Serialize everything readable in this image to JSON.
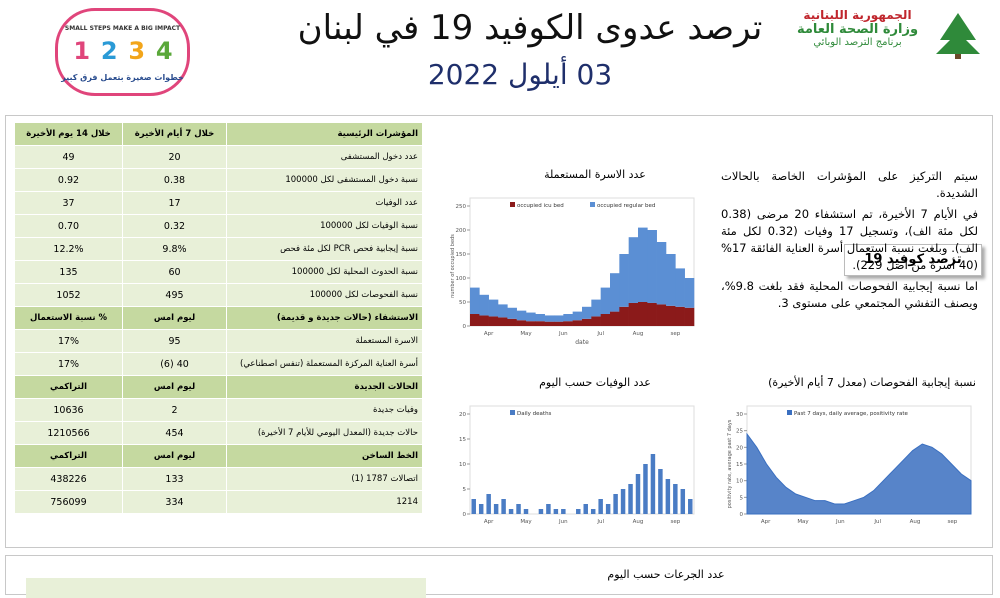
{
  "header": {
    "title": "ترصد عدوى الكوفيد 19 في لبنان",
    "date": "03 أيلول 2022",
    "ministry": [
      "الجمهورية اللبنانية",
      "وزارة الصحة العامة",
      "برنامج الترصد الوبائي"
    ],
    "campaign": {
      "slogan_en": "SMALL STEPS MAKE A BIG IMPACT",
      "steps": [
        "1",
        "2",
        "3",
        "4"
      ],
      "slogan_ar": "خطوات صغيرة بتعمل فرق كبير"
    }
  },
  "table": {
    "sections": [
      {
        "header": [
          "المؤشرات الرئيسية",
          "خلال 7 أيام الأخيرة",
          "خلال 14 يوم الأخيرة"
        ],
        "rows": [
          [
            "عدد دخول المستشفى",
            "20",
            "49"
          ],
          [
            "نسبة دخول المستشفى لكل 100000",
            "0.38",
            "0.92"
          ],
          [
            "عدد الوفيات",
            "17",
            "37"
          ],
          [
            "نسبة الوفيات لكل 100000",
            "0.32",
            "0.70"
          ],
          [
            "نسبة إيجابية فحص PCR لكل مئة فحص",
            "9.8%",
            "12.2%"
          ],
          [
            "نسبة الحدوث المحلية لكل 100000",
            "60",
            "135"
          ],
          [
            "نسبة الفحوصات لكل 100000",
            "495",
            "1052"
          ]
        ]
      },
      {
        "header": [
          "الاستشفاء (حالات جديدة و قديمة)",
          "ليوم امس",
          "% نسبة الاستعمال"
        ],
        "rows": [
          [
            "الاسرة المستعملة",
            "95",
            "17%"
          ],
          [
            "أسرة العناية المركزة المستعملة (تنفس اصطناعي)",
            "40 (6)",
            "17%"
          ]
        ]
      },
      {
        "header": [
          "الحالات الجديدة",
          "ليوم امس",
          "التراكمي"
        ],
        "rows": [
          [
            "وفيات جديدة",
            "2",
            "10636"
          ],
          [
            "حالات جديدة (المعدل اليومي للأيام 7 الأخيرة)",
            "454",
            "1210566"
          ]
        ]
      },
      {
        "header": [
          "الخط الساخن",
          "ليوم امس",
          "التراكمي"
        ],
        "rows": [
          [
            "اتصالات 1787 (1)",
            "133",
            "438226"
          ],
          [
            "1214",
            "334",
            "756099"
          ]
        ]
      }
    ]
  },
  "summary": {
    "title": "ترصد كوفيد 19",
    "paragraphs": [
      "سيتم التركيز على المؤشرات الخاصة بالحالات الشديدة.",
      "في الأيام 7 الأخيرة، تم استشفاء 20 مرضى (0.38 لكل مئة الف)، وتسجيل 17 وفيات (0.32 لكل مئة الف). وبلغت نسبة استعمال أسرة العناية الفائقة 17% (40 أسرة من أصل 229).",
      "اما نسبة إيجابية الفحوصات المحلية فقد بلغت 9.8%، ويصنف التفشي المجتمعي على مستوى 3."
    ]
  },
  "charts": [
    {
      "type": "stacked_bar",
      "title": "عدد الاسرة المستعملة",
      "x_title": "date",
      "y_title": "number of occupied beds",
      "x_labels": [
        "Apr",
        "May",
        "Jun",
        "Jul",
        "Aug",
        "sep"
      ],
      "ylim": [
        0,
        250
      ],
      "yticks": [
        0,
        50,
        100,
        150,
        200,
        250
      ],
      "series": [
        {
          "name": "occupied icu bed",
          "color": "#8b1a1a",
          "values": [
            25,
            22,
            20,
            18,
            15,
            12,
            10,
            10,
            9,
            9,
            10,
            12,
            15,
            20,
            25,
            30,
            40,
            48,
            50,
            48,
            45,
            42,
            40,
            38
          ]
        },
        {
          "name": "occupied regular bed",
          "color": "#5b8fd4",
          "values": [
            55,
            43,
            35,
            27,
            23,
            20,
            18,
            15,
            13,
            13,
            15,
            18,
            25,
            35,
            55,
            80,
            110,
            137,
            155,
            152,
            130,
            108,
            80,
            62
          ]
        }
      ]
    },
    {
      "type": "bar",
      "title": "عدد الوفيات حسب اليوم",
      "x_labels": [
        "Apr",
        "May",
        "Jun",
        "Jul",
        "Aug",
        "sep"
      ],
      "ylim": [
        0,
        20
      ],
      "yticks": [
        0,
        5,
        10,
        15,
        20
      ],
      "series": [
        {
          "name": "Daily deaths",
          "color": "#4a7cc4",
          "values": [
            3,
            2,
            4,
            2,
            3,
            1,
            2,
            1,
            0,
            1,
            2,
            1,
            1,
            0,
            1,
            2,
            1,
            3,
            2,
            4,
            5,
            6,
            8,
            10,
            12,
            9,
            7,
            6,
            5,
            3
          ]
        }
      ]
    },
    {
      "type": "area",
      "title": "نسبة إيجابية الفحوصات (معدل 7 أيام الأخيرة)",
      "y_title": "positivity rate, average past 7 days",
      "x_labels": [
        "Apr",
        "May",
        "Jun",
        "Jul",
        "Aug",
        "sep"
      ],
      "ylim": [
        0,
        30
      ],
      "yticks": [
        0,
        5,
        10,
        15,
        20,
        25,
        30
      ],
      "series": [
        {
          "name": "Past 7 days, daily average, positivity rate",
          "color": "#3a6fc0",
          "values": [
            24,
            20,
            15,
            11,
            8,
            6,
            5,
            4,
            4,
            3,
            3,
            4,
            5,
            7,
            10,
            13,
            16,
            19,
            21,
            20,
            18,
            15,
            12,
            10
          ]
        }
      ]
    }
  ],
  "footer": {
    "title": "عدد الجرعات حسب اليوم"
  }
}
